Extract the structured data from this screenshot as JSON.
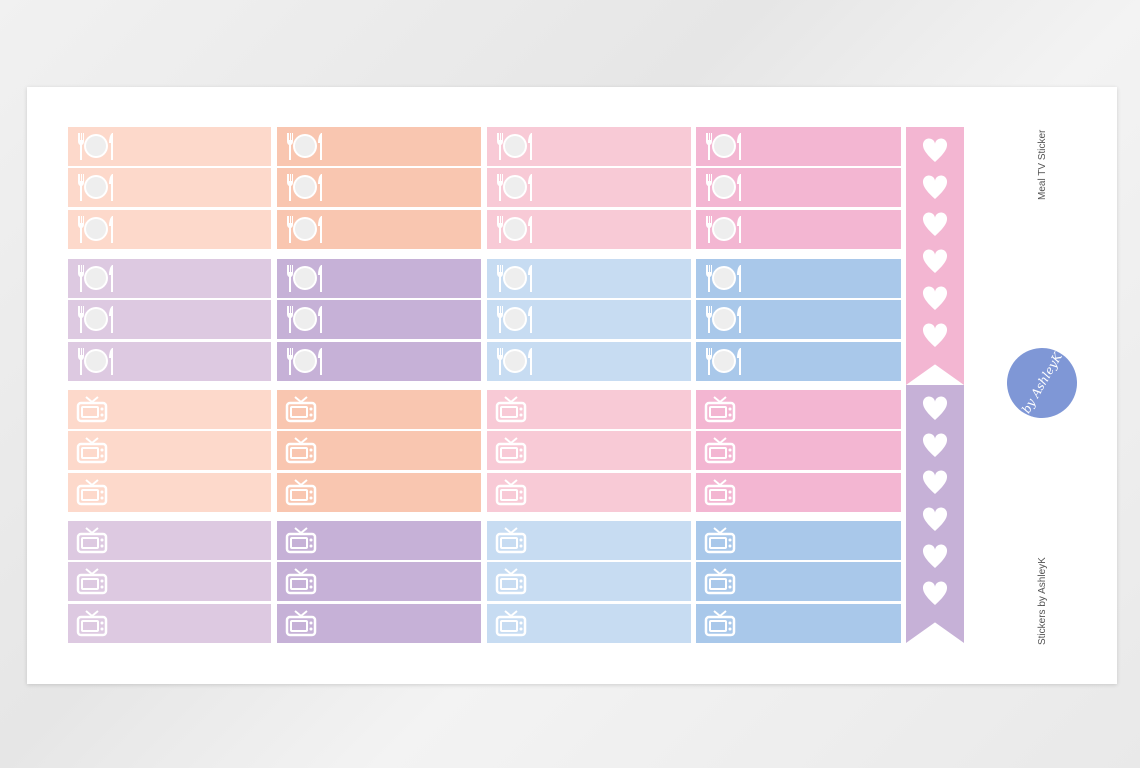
{
  "sheet": {
    "title": "Meal TV Sticker",
    "credit": "Stickers by AshleyK",
    "logo_text": "by AshleyK"
  },
  "colors": {
    "peach_light": "#fdd9cb",
    "peach": "#f9c6b0",
    "pink_light": "#f8cad6",
    "pink": "#f3b6d2",
    "lavender_light": "#ddc9e1",
    "lavender": "#c6b1d7",
    "blue_light": "#c7dcf2",
    "blue": "#a9c8ea",
    "logo": "#7f97d6"
  },
  "groups": [
    {
      "icon": "plate-cutlery-icon",
      "colors": [
        "peach_light",
        "peach",
        "pink_light",
        "pink"
      ]
    },
    {
      "icon": "plate-cutlery-icon",
      "colors": [
        "lavender_light",
        "lavender",
        "blue_light",
        "blue"
      ]
    },
    {
      "icon": "tv-icon",
      "colors": [
        "peach_light",
        "peach",
        "pink_light",
        "pink"
      ]
    },
    {
      "icon": "tv-icon",
      "colors": [
        "lavender_light",
        "lavender",
        "blue_light",
        "blue"
      ]
    }
  ],
  "banners": [
    {
      "color": "pink",
      "hearts": 6,
      "icon": "heart-icon"
    },
    {
      "color": "lavender",
      "hearts": 6,
      "icon": "heart-icon"
    }
  ]
}
